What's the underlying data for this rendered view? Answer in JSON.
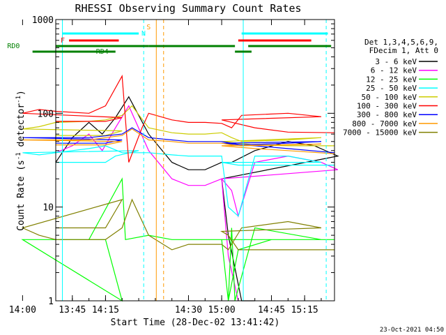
{
  "chart_data": {
    "type": "line",
    "title": "RHESSI Observing Summary Count Rates",
    "xlabel": "Start Time (28-Dec-02 13:41:42)",
    "ylabel": "Count Rate (s",
    "ylabel_exp1": "-1",
    "ylabel_mid": " detector",
    "ylabel_exp2": "-1",
    "ylabel_end": ")",
    "ylog": true,
    "ylim": [
      1,
      1000
    ],
    "xlim_minutes": [
      13.7,
      15.34
    ],
    "x_ticks": [
      {
        "t": 13.75,
        "label": "13:45"
      },
      {
        "t": 14.0,
        "label": "14:00"
      },
      {
        "t": 14.25,
        "label": "14:15"
      },
      {
        "t": 14.5,
        "label": "14:30"
      },
      {
        "t": 14.75,
        "label": "14:45"
      },
      {
        "t": 15.0,
        "label": "15:00"
      },
      {
        "t": 15.25,
        "label": "15:15"
      }
    ],
    "y_ticks": [
      {
        "v": 1000,
        "label": "1000"
      },
      {
        "v": 100,
        "label": "100"
      },
      {
        "v": 10,
        "label": "10"
      },
      {
        "v": 1,
        "label": "1"
      }
    ],
    "legend_header": [
      "Det 1,3,4,5,6,9,",
      "FDecim 1, Att 0"
    ],
    "legend_position": "right",
    "series": [
      {
        "name": "3 - 6 keV",
        "color": "#000000",
        "x": [
          13.7,
          13.85,
          13.9,
          13.95,
          14.0,
          14.05,
          14.1,
          14.15,
          14.2,
          14.24,
          14.28,
          14.32,
          14.38,
          14.45,
          14.5,
          14.55,
          14.6,
          14.63,
          14.7,
          14.8,
          14.88,
          14.95,
          15.0,
          15.02,
          15.06,
          15.1
        ],
        "y": [
          null,
          null,
          null,
          null,
          null,
          null,
          30,
          55,
          80,
          60,
          90,
          150,
          60,
          30,
          25,
          25,
          30,
          30,
          40,
          50,
          45,
          35,
          20,
          5,
          1,
          1
        ]
      },
      {
        "name": "6 - 12 keV",
        "color": "#ff00ff",
        "x": [
          13.7,
          13.85,
          13.9,
          14.1,
          14.15,
          14.2,
          14.24,
          14.28,
          14.32,
          14.38,
          14.45,
          14.5,
          14.55,
          14.6,
          14.63,
          14.65,
          14.7,
          14.8,
          14.9,
          14.95,
          15.0,
          15.02,
          15.05
        ],
        "y": [
          null,
          null,
          null,
          38,
          45,
          60,
          40,
          70,
          120,
          40,
          20,
          17,
          17,
          20,
          15,
          8,
          30,
          35,
          30,
          25,
          20,
          3,
          1
        ]
      },
      {
        "name": "12 - 25 keV",
        "color": "#00ff00",
        "x": [
          13.7,
          13.85,
          13.9,
          14.0,
          14.2,
          14.3,
          14.31,
          14.38,
          14.45,
          14.5,
          14.6,
          14.62,
          14.63,
          14.64,
          14.7,
          14.9,
          15.0,
          15.02,
          15.05,
          15.15,
          15.34
        ],
        "y": [
          4.5,
          4.5,
          1,
          4.5,
          4.5,
          20,
          4.5,
          5,
          4.5,
          4.5,
          4.5,
          1,
          6,
          1,
          6,
          4.5,
          4.5,
          1,
          3.5,
          4.5,
          4.5
        ]
      },
      {
        "name": "25 - 50 keV",
        "color": "#00ffff",
        "x": [
          13.7,
          13.85,
          13.88,
          13.95,
          14.0,
          14.05,
          14.1,
          14.15,
          14.2,
          14.25,
          14.3,
          14.38,
          14.45,
          14.5,
          14.55,
          14.6,
          14.62,
          14.65,
          14.7,
          14.8,
          14.9,
          15.0,
          15.05,
          15.1,
          15.2,
          15.34
        ],
        "y": [
          30,
          30,
          35,
          40,
          38,
          36,
          38,
          40,
          42,
          45,
          38,
          38,
          36,
          35,
          35,
          35,
          10,
          8,
          35,
          35,
          30,
          30,
          28,
          28,
          28,
          28
        ]
      },
      {
        "name": "50 - 100 keV",
        "color": "#cccc00",
        "x": [
          13.7,
          13.85,
          13.9,
          14.0,
          14.05,
          14.1,
          14.2,
          14.25,
          14.3,
          14.33,
          14.38,
          14.45,
          14.5,
          14.55,
          14.6,
          14.63,
          14.66,
          14.8,
          14.9,
          15.0,
          15.1,
          15.2,
          15.34
        ],
        "y": [
          58,
          58,
          65,
          68,
          72,
          80,
          82,
          85,
          95,
          120,
          70,
          62,
          60,
          60,
          62,
          55,
          50,
          52,
          55,
          50,
          46,
          45,
          45
        ]
      },
      {
        "name": "100 - 300 keV",
        "color": "#ff0000",
        "x": [
          13.7,
          13.85,
          13.9,
          14.0,
          14.05,
          14.1,
          14.2,
          14.25,
          14.3,
          14.32,
          14.36,
          14.38,
          14.45,
          14.5,
          14.55,
          14.6,
          14.63,
          14.66,
          14.8,
          14.9,
          15.0,
          15.1,
          15.2,
          15.34
        ],
        "y": [
          82,
          82,
          90,
          100,
          110,
          105,
          100,
          120,
          250,
          30,
          70,
          100,
          85,
          80,
          80,
          78,
          70,
          95,
          100,
          92,
          85,
          70,
          63,
          62
        ]
      },
      {
        "name": "300 - 800 keV",
        "color": "#0000ff",
        "x": [
          13.7,
          13.85,
          13.9,
          14.0,
          14.1,
          14.2,
          14.3,
          14.33,
          14.38,
          14.45,
          14.5,
          14.55,
          14.6,
          14.63,
          14.66,
          14.8,
          14.9,
          15.0,
          15.1,
          15.2,
          15.34
        ],
        "y": [
          48,
          48,
          52,
          55,
          55,
          55,
          60,
          70,
          55,
          52,
          50,
          50,
          50,
          48,
          46,
          48,
          50,
          48,
          45,
          42,
          38
        ]
      },
      {
        "name": "800 - 7000 keV",
        "color": "#ff9900",
        "x": [
          13.7,
          13.85,
          13.9,
          14.0,
          14.1,
          14.2,
          14.3,
          14.33,
          14.38,
          14.45,
          14.5,
          14.55,
          14.6,
          14.63,
          14.66,
          14.8,
          14.9,
          15.0,
          15.1,
          15.2,
          15.34
        ],
        "y": [
          46,
          46,
          50,
          52,
          52,
          52,
          58,
          68,
          52,
          50,
          48,
          48,
          48,
          46,
          45,
          46,
          47,
          45,
          42,
          40,
          37
        ]
      },
      {
        "name": "7000 - 15000 keV",
        "color": "#808000",
        "x": [
          13.7,
          13.85,
          13.9,
          14.0,
          14.05,
          14.1,
          14.2,
          14.25,
          14.3,
          14.33,
          14.38,
          14.45,
          14.5,
          14.6,
          14.62,
          14.66,
          14.8,
          14.9,
          15.0,
          15.02,
          15.05,
          15.15,
          15.34
        ],
        "y": [
          6,
          6,
          12,
          6,
          5,
          4.5,
          4.5,
          4.5,
          6,
          12,
          5,
          3.5,
          4,
          4,
          3.5,
          6,
          7,
          6,
          5.5,
          5,
          3.5,
          3.5,
          3.5
        ]
      }
    ],
    "annotations": {
      "flags": [
        {
          "label": "N",
          "color": "#00ffff",
          "ranges": [
            [
              13.72,
              13.95
            ],
            [
              15.06,
              15.32
            ]
          ],
          "row": 1
        },
        {
          "label": "F",
          "color": "#ff0000",
          "ranges": [
            [
              14.14,
              14.29
            ],
            [
              14.65,
              14.87
            ]
          ],
          "row": 2
        },
        {
          "label": "RD0",
          "color": "#008000",
          "ranges": [
            [
              13.7,
              14.38
            ],
            [
              14.38,
              14.64
            ],
            [
              14.68,
              15.33
            ]
          ],
          "row": 3
        },
        {
          "label": "RD4",
          "color": "#008000",
          "ranges": [
            [
              13.88,
              14.03
            ],
            [
              14.64,
              14.69
            ]
          ],
          "row": 4
        },
        {
          "label": "S",
          "color": "#ff9900",
          "ranges": [],
          "row": 0
        }
      ],
      "vlines": [
        {
          "t": 13.72,
          "color": "#00ffff",
          "style": "solid"
        },
        {
          "t": 13.965,
          "color": "#00ffff",
          "style": "dashed"
        },
        {
          "t": 14.403,
          "color": "#ff9900",
          "style": "solid"
        },
        {
          "t": 14.425,
          "color": "#ff9900",
          "style": "dashed"
        },
        {
          "t": 15.065,
          "color": "#00ffff",
          "style": "solid"
        },
        {
          "t": 15.315,
          "color": "#00ffff",
          "style": "dashed"
        }
      ]
    },
    "footer_stamp": "23-Oct-2021 04:50"
  }
}
